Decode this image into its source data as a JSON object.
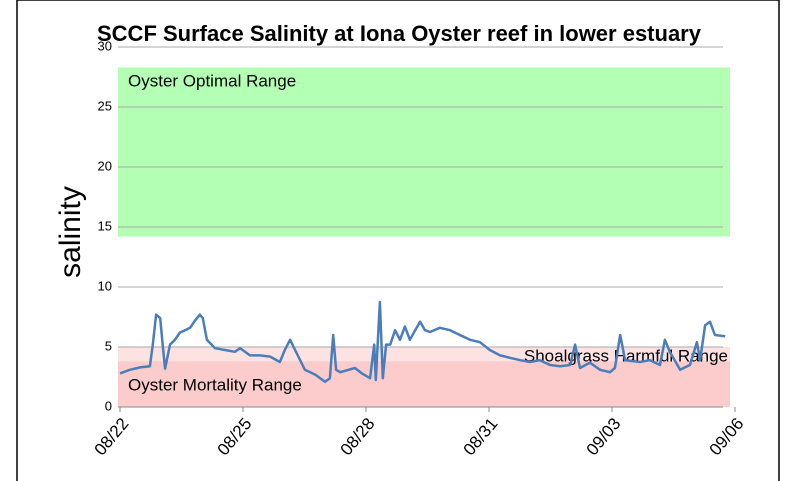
{
  "chart_data": {
    "type": "line",
    "title": "SCCF Surface Salinity at Iona Oyster reef in lower estuary",
    "y_label": "salinity",
    "xlim": [
      0,
      15
    ],
    "xticks": [
      {
        "value": 0,
        "label": "08/22"
      },
      {
        "value": 3,
        "label": "08/25"
      },
      {
        "value": 6,
        "label": "08/28"
      },
      {
        "value": 9,
        "label": "08/31"
      },
      {
        "value": 12,
        "label": "09/03"
      },
      {
        "value": 15,
        "label": "09/06"
      }
    ],
    "ylim": [
      0,
      30
    ],
    "yticks": [
      0,
      5,
      10,
      15,
      20,
      25,
      30
    ],
    "grid": true,
    "bands": [
      {
        "label": "Oyster Optimal Range",
        "range": [
          14.2,
          28.3
        ],
        "color": "#b3ffb3"
      },
      {
        "label": "Shoalgrass Harmful Range",
        "range": [
          0,
          5
        ],
        "color": "#fde2e2"
      },
      {
        "label": "Oyster Mortality Range",
        "range": [
          0,
          3.8
        ],
        "color": "#fccccc"
      }
    ],
    "series": [
      {
        "color": "#4a7ebb",
        "x": [
          0,
          0.24,
          0.49,
          0.73,
          0.8,
          0.88,
          0.98,
          1.05,
          1.1,
          1.22,
          1.34,
          1.46,
          1.59,
          1.71,
          1.83,
          1.95,
          2.02,
          2.12,
          2.32,
          2.56,
          2.8,
          2.93,
          3.05,
          3.17,
          3.41,
          3.66,
          3.9,
          4.02,
          4.15,
          4.27,
          4.51,
          4.76,
          5,
          5.12,
          5.2,
          5.27,
          5.37,
          5.73,
          5.9,
          6.1,
          6.2,
          6.24,
          6.34,
          6.41,
          6.49,
          6.59,
          6.71,
          6.83,
          6.95,
          7.07,
          7.2,
          7.32,
          7.44,
          7.56,
          7.8,
          8.05,
          8.29,
          8.54,
          8.78,
          9.02,
          9.27,
          9.51,
          9.76,
          10,
          10.24,
          10.49,
          10.73,
          10.98,
          11.1,
          11.22,
          11.46,
          11.71,
          11.95,
          12.07,
          12.2,
          12.32,
          12.68,
          12.93,
          13.17,
          13.29,
          13.41,
          13.66,
          13.9,
          14.07,
          14.15,
          14.27,
          14.39,
          14.51,
          14.76
        ],
        "values": [
          2.8,
          3.1,
          3.3,
          3.4,
          5.2,
          7.7,
          7.4,
          4.8,
          3.2,
          5.2,
          5.6,
          6.2,
          6.4,
          6.6,
          7.2,
          7.7,
          7.4,
          5.6,
          4.9,
          4.75,
          4.6,
          4.9,
          4.6,
          4.3,
          4.3,
          4.2,
          3.75,
          4.75,
          5.6,
          4.75,
          3.1,
          2.7,
          2.1,
          2.4,
          6,
          3.1,
          2.9,
          3.25,
          2.8,
          2.4,
          5.2,
          2.25,
          8.75,
          2.4,
          5.2,
          5.2,
          6.4,
          5.6,
          6.7,
          5.6,
          6.4,
          7.1,
          6.4,
          6.25,
          6.6,
          6.4,
          6,
          5.6,
          5.4,
          4.75,
          4.3,
          4.1,
          3.9,
          3.75,
          3.9,
          3.5,
          3.4,
          3.5,
          5.2,
          3.25,
          3.7,
          3.1,
          2.9,
          3.25,
          6,
          3.9,
          3.75,
          3.9,
          3.5,
          5.6,
          4.6,
          3.1,
          3.5,
          5.4,
          3.9,
          6.8,
          7.1,
          6,
          5.9
        ]
      }
    ]
  }
}
